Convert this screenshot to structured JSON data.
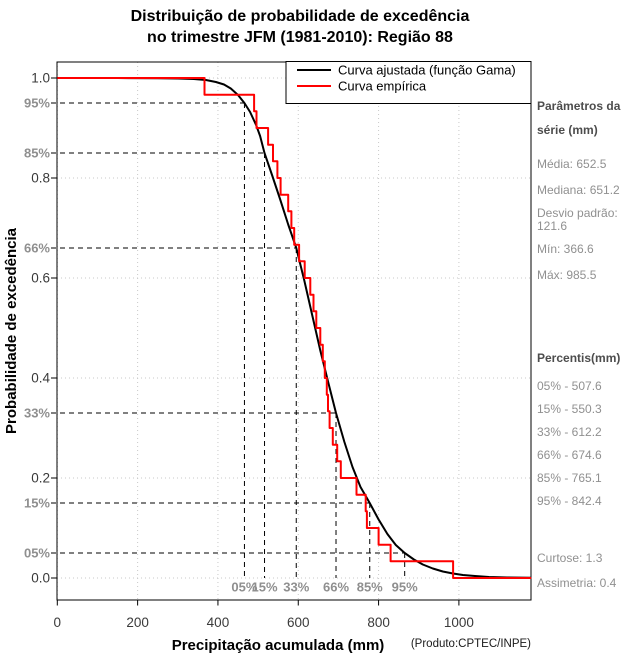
{
  "title": {
    "line1": "Distribuição de probabilidade de excedência",
    "line2": "no trimestre JFM (1981-2010): Região 88"
  },
  "axes": {
    "x_label": "Precipitação acumulada (mm)",
    "y_label": "Probabilidade de excedência",
    "source": "(Produto:CPTEC/INPE)"
  },
  "legend": {
    "fitted_label": "Curva ajustada (função Gama)",
    "empirical_label": "Curva empírica",
    "fitted_color": "#000000",
    "empirical_color": "#ff0000"
  },
  "sidebar": {
    "params_title": "Parâmetros da série (mm)",
    "media": "Média: 652.5",
    "mediana": "Mediana: 651.2",
    "desvio": "Desvio padrão: 121.6",
    "min": "Mín: 366.6",
    "max": "Máx: 985.5",
    "percentiles_title": "Percentis(mm)",
    "percentiles": [
      "05% - 507.6",
      "15% - 550.3",
      "33% - 612.2",
      "66% - 674.6",
      "85% - 765.1",
      "95% - 842.4"
    ],
    "curtose": "Curtose: 1.3",
    "assimetria": "Assimetria: 0.4"
  },
  "chart_data": {
    "type": "line",
    "title": "Distribuição de probabilidade de excedência no trimestre JFM (1981-2010): Região 88",
    "xlabel": "Precipitação acumulada (mm)",
    "ylabel": "Probabilidade de excedência",
    "xlim": [
      0,
      1180
    ],
    "ylim": [
      0.0,
      1.0
    ],
    "grid": "dotted lightgray at every x tick and every 0.2 in y",
    "legend_position": "top-center-right inside plot",
    "x_ticks": [
      0,
      200,
      400,
      600,
      800,
      1000
    ],
    "y_ticks": [
      1.0,
      0.8,
      0.6,
      0.4,
      0.2,
      0.0
    ],
    "y_tick_labels": [
      "1.0",
      "0.8",
      "0.6",
      "0.4",
      "0.2",
      "0.0"
    ],
    "grid_color": "#c9c9c9",
    "series": [
      {
        "name": "Curva ajustada (função Gama)",
        "color": "#000000",
        "style": "smooth",
        "points": [
          [
            0,
            1
          ],
          [
            150,
            1
          ],
          [
            250,
            0.9995
          ],
          [
            300,
            0.999
          ],
          [
            340,
            0.998
          ],
          [
            370,
            0.996
          ],
          [
            395,
            0.992
          ],
          [
            415,
            0.987
          ],
          [
            432,
            0.979
          ],
          [
            450,
            0.966
          ],
          [
            466,
            0.95
          ],
          [
            480,
            0.932
          ],
          [
            495,
            0.906
          ],
          [
            505,
            0.884
          ],
          [
            516,
            0.85
          ],
          [
            535,
            0.805
          ],
          [
            555,
            0.757
          ],
          [
            575,
            0.707
          ],
          [
            595,
            0.66
          ],
          [
            615,
            0.595
          ],
          [
            635,
            0.525
          ],
          [
            655,
            0.455
          ],
          [
            675,
            0.39
          ],
          [
            694,
            0.33
          ],
          [
            715,
            0.272
          ],
          [
            735,
            0.222
          ],
          [
            755,
            0.182
          ],
          [
            778,
            0.15
          ],
          [
            800,
            0.117
          ],
          [
            822,
            0.088
          ],
          [
            843,
            0.066
          ],
          [
            865,
            0.05
          ],
          [
            888,
            0.037
          ],
          [
            910,
            0.027
          ],
          [
            935,
            0.019
          ],
          [
            960,
            0.013
          ],
          [
            985,
            0.009
          ],
          [
            1010,
            0.006
          ],
          [
            1040,
            0.004
          ],
          [
            1075,
            0.002
          ],
          [
            1120,
            0.001
          ],
          [
            1180,
            0.0005
          ]
        ]
      },
      {
        "name": "Curva empírica",
        "color": "#ff0000",
        "style": "step-exceedance",
        "sorted_values_mm": [
          366.6,
          490,
          496,
          525,
          537,
          548,
          556,
          575,
          583,
          590,
          602,
          616,
          630,
          638,
          645,
          655,
          661,
          666,
          671,
          674,
          678,
          686,
          697,
          706,
          745,
          768,
          771,
          800,
          830,
          985.5
        ],
        "note": "empirical exceedance: starts at 1.0, drops 1/30 at each sorted value, reaches 0 after max (985.5), then flat to x-max"
      }
    ],
    "percentile_markers": [
      {
        "pct": "05%",
        "exceedance_pct": "95%",
        "exceedance": 0.95,
        "x_mm": 466
      },
      {
        "pct": "15%",
        "exceedance_pct": "85%",
        "exceedance": 0.85,
        "x_mm": 516
      },
      {
        "pct": "33%",
        "exceedance_pct": "66%",
        "exceedance": 0.66,
        "x_mm": 595
      },
      {
        "pct": "66%",
        "exceedance_pct": "33%",
        "exceedance": 0.33,
        "x_mm": 694
      },
      {
        "pct": "85%",
        "exceedance_pct": "15%",
        "exceedance": 0.15,
        "x_mm": 778
      },
      {
        "pct": "95%",
        "exceedance_pct": "05%",
        "exceedance": 0.05,
        "x_mm": 865
      }
    ]
  }
}
